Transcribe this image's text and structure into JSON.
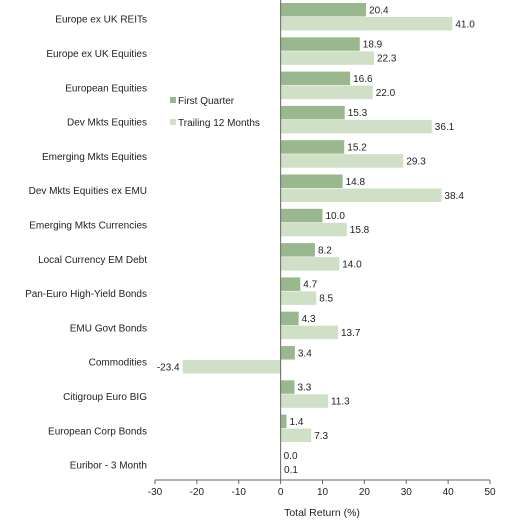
{
  "chart_data": {
    "type": "bar",
    "orientation": "horizontal",
    "categories": [
      "Europe ex UK REITs",
      "Europe ex UK Equities",
      "European Equities",
      "Dev Mkts Equities",
      "Emerging Mkts Equities",
      "Dev Mkts Equities ex EMU",
      "Emerging Mkts Currencies",
      "Local Currency EM Debt",
      "Pan-Euro High-Yield Bonds",
      "EMU Govt Bonds",
      "Commodities",
      "Citigroup Euro BIG",
      "European Corp Bonds",
      "Euribor - 3 Month"
    ],
    "series": [
      {
        "name": "First Quarter",
        "color": "#99b88d",
        "values": [
          20.4,
          18.9,
          16.6,
          15.3,
          15.2,
          14.8,
          10.0,
          8.2,
          4.7,
          4.3,
          3.4,
          3.3,
          1.4,
          0.0
        ],
        "labels": [
          "20.4",
          "18.9",
          "16.6",
          "15.3",
          "15.2",
          "14.8",
          "10.0",
          "8.2",
          "4.7",
          "4.3",
          "3.4",
          "3.3",
          "1.4",
          "0.0"
        ]
      },
      {
        "name": "Trailing 12 Months",
        "color": "#cfe0c6",
        "values": [
          41.0,
          22.3,
          22.0,
          36.1,
          29.3,
          38.4,
          15.8,
          14.0,
          8.5,
          13.7,
          -23.4,
          11.3,
          7.3,
          0.1
        ],
        "labels": [
          "41.0",
          "22.3",
          "22.0",
          "36.1",
          "29.3",
          "38.4",
          "15.8",
          "14.0",
          "8.5",
          "13.7",
          "-23.4",
          "11.3",
          "7.3",
          "0.1"
        ]
      }
    ],
    "xlabel": "Total Return (%)",
    "xlim": [
      -30,
      50
    ],
    "xticks": [
      -30,
      -20,
      -10,
      0,
      10,
      20,
      30,
      40,
      50
    ],
    "xtick_labels": [
      "-30",
      "-20",
      "-10",
      "0",
      "10",
      "20",
      "30",
      "40",
      "50"
    ],
    "grid": false,
    "legend_position": "center-left inside plot"
  }
}
